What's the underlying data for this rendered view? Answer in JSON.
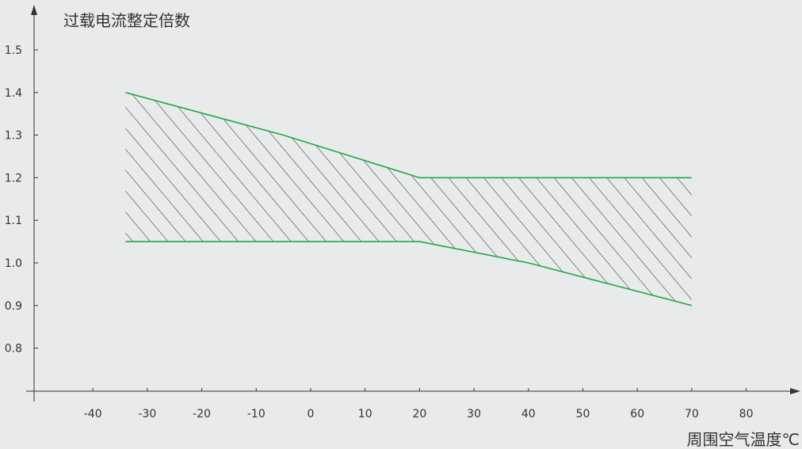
{
  "chart_data": {
    "type": "area",
    "ylabel": "过载电流整定倍数",
    "xlabel": "周围空气温度℃",
    "xlim": [
      -45,
      83
    ],
    "ylim": [
      0.7,
      1.55
    ],
    "x_ticks": [
      -40,
      -30,
      -20,
      -10,
      0,
      10,
      20,
      30,
      40,
      50,
      60,
      70,
      80
    ],
    "x_tick_labels": [
      "-40",
      "-30",
      "-20",
      "-10",
      "0",
      "10",
      "20",
      "30",
      "40",
      "50",
      "60",
      "70",
      "80"
    ],
    "y_ticks": [
      0.8,
      0.9,
      1.0,
      1.1,
      1.2,
      1.3,
      1.4,
      1.5
    ],
    "y_tick_labels": [
      "0.8",
      "0.9",
      "1.0",
      "1.1",
      "1.2",
      "1.3",
      "1.4",
      "1.5"
    ],
    "series": [
      {
        "values": [
          [
            -34,
            1.4
          ],
          [
            -5,
            1.3
          ],
          [
            20,
            1.2
          ],
          [
            70,
            1.2
          ]
        ]
      },
      {
        "values": [
          [
            -34,
            1.05
          ],
          [
            20,
            1.05
          ],
          [
            40,
            1.0
          ],
          [
            70,
            0.9
          ]
        ]
      }
    ],
    "fill": "hatched region between upper and lower curves",
    "colors": {
      "line": "#22a846",
      "axis": "#333333",
      "hatch": "#222222",
      "background": "#e9eaeb"
    },
    "grid": false,
    "legend": "none"
  }
}
